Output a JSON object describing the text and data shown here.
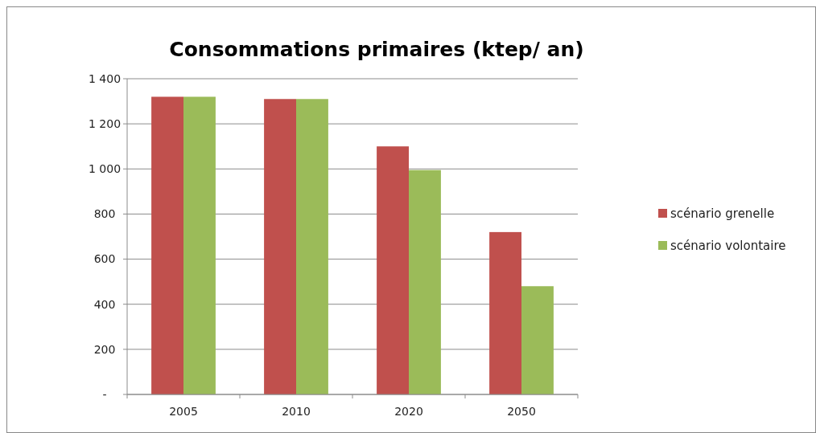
{
  "chart_data": {
    "type": "bar",
    "title": "Consommations primaires (ktep/ an)",
    "categories": [
      "2005",
      "2010",
      "2020",
      "2050"
    ],
    "series": [
      {
        "name": "scénario grenelle",
        "color": "#c0504d",
        "values": [
          1320,
          1310,
          1100,
          720
        ]
      },
      {
        "name": "scénario volontaire",
        "color": "#9bbb59",
        "values": [
          1320,
          1310,
          995,
          480
        ]
      }
    ],
    "ylim": [
      0,
      1400
    ],
    "yticks": [
      {
        "value": 0,
        "label": "-"
      },
      {
        "value": 200,
        "label": "200"
      },
      {
        "value": 400,
        "label": "400"
      },
      {
        "value": 600,
        "label": "600"
      },
      {
        "value": 800,
        "label": "800"
      },
      {
        "value": 1000,
        "label": "1 000"
      },
      {
        "value": 1200,
        "label": "1 200"
      },
      {
        "value": 1400,
        "label": "1 400"
      }
    ],
    "grid": "y",
    "legend": "right"
  }
}
